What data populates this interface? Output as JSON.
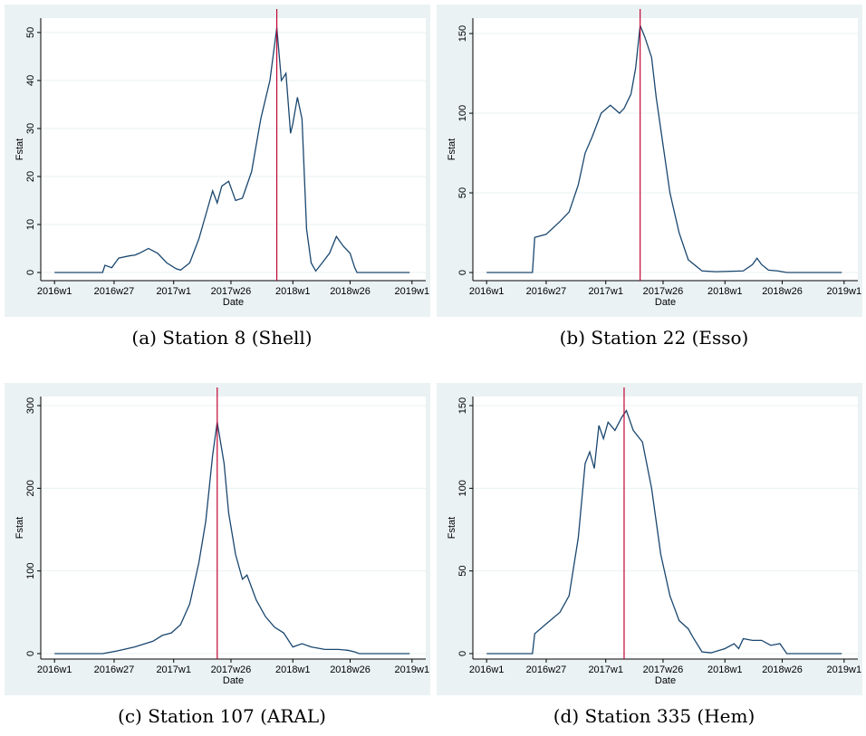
{
  "chart_data": [
    {
      "type": "line",
      "caption": "(a) Station 8 (Shell)",
      "xlabel": "Date",
      "ylabel": "Fstat",
      "color": "#1a476f",
      "xline": 3009,
      "xline_color": "#c10534",
      "grid": true,
      "xlim": [
        2906,
        3074
      ],
      "ylim": [
        -1.7,
        53
      ],
      "xticks": [
        {
          "value": 2912,
          "label": "2016w1"
        },
        {
          "value": 2938,
          "label": "2016w27"
        },
        {
          "value": 2964,
          "label": "2017w1"
        },
        {
          "value": 2989,
          "label": "2017w26"
        },
        {
          "value": 3016,
          "label": "2018w1"
        },
        {
          "value": 3041,
          "label": "2018w26"
        },
        {
          "value": 3068,
          "label": "2019w1"
        }
      ],
      "yticks": [
        0,
        10,
        20,
        30,
        40,
        50
      ],
      "x": [
        2912,
        2933,
        2934,
        2937,
        2940,
        2945,
        2947,
        2949,
        2953,
        2957,
        2961,
        2965,
        2967,
        2971,
        2975,
        2978,
        2981,
        2983,
        2985,
        2988,
        2991,
        2994,
        2998,
        3002,
        3006,
        3009,
        3011,
        3013,
        3015,
        3016,
        3018,
        3020,
        3022,
        3024,
        3026,
        3028,
        3032,
        3035,
        3038,
        3041,
        3043,
        3044,
        3067
      ],
      "values": [
        0,
        0,
        1.5,
        1,
        3,
        3.5,
        3.6,
        4,
        5,
        4,
        2,
        0.8,
        0.5,
        2,
        7,
        12,
        17,
        14.5,
        18,
        19,
        15,
        15.5,
        21,
        32,
        40,
        51,
        40,
        41.5,
        29,
        31,
        36.5,
        32,
        9,
        2,
        0.3,
        1.5,
        4,
        7.5,
        5.5,
        4,
        1,
        0,
        0
      ]
    },
    {
      "type": "line",
      "caption": "(b) Station 22 (Esso)",
      "xlabel": "Date",
      "ylabel": "Fstat",
      "color": "#1a476f",
      "xline": 2979,
      "xline_color": "#c10534",
      "grid": true,
      "xlim": [
        2906,
        3074
      ],
      "ylim": [
        -5.1,
        159.7
      ],
      "xticks": [
        {
          "value": 2912,
          "label": "2016w1"
        },
        {
          "value": 2938,
          "label": "2016w27"
        },
        {
          "value": 2964,
          "label": "2017w1"
        },
        {
          "value": 2989,
          "label": "2017w26"
        },
        {
          "value": 3016,
          "label": "2018w1"
        },
        {
          "value": 3041,
          "label": "2018w26"
        },
        {
          "value": 3068,
          "label": "2019w1"
        }
      ],
      "yticks": [
        0,
        50,
        100,
        150
      ],
      "x": [
        2912,
        2932,
        2933,
        2938,
        2944,
        2948,
        2952,
        2955,
        2958,
        2962,
        2966,
        2970,
        2972,
        2975,
        2977,
        2979,
        2981,
        2984,
        2986,
        2989,
        2992,
        2996,
        3000,
        3006,
        3012,
        3024,
        3028,
        3030,
        3032,
        3035,
        3039,
        3043,
        3067
      ],
      "values": [
        0,
        0,
        22,
        24,
        32,
        38,
        55,
        75,
        85,
        100,
        105,
        100,
        103,
        112,
        128,
        155,
        148,
        135,
        110,
        80,
        50,
        25,
        8,
        1,
        0.5,
        1,
        5,
        9,
        5,
        1.5,
        1,
        0,
        0
      ]
    },
    {
      "type": "line",
      "caption": "(c) Station 107 (ARAL)",
      "xlabel": "Date",
      "ylabel": "Fstat",
      "color": "#1a476f",
      "xline": 2983,
      "xline_color": "#c10534",
      "grid": true,
      "xlim": [
        2906,
        3074
      ],
      "ylim": [
        -6.6,
        311
      ],
      "xticks": [
        {
          "value": 2912,
          "label": "2016w1"
        },
        {
          "value": 2938,
          "label": "2016w27"
        },
        {
          "value": 2964,
          "label": "2017w1"
        },
        {
          "value": 2989,
          "label": "2017w26"
        },
        {
          "value": 3016,
          "label": "2018w1"
        },
        {
          "value": 3041,
          "label": "2018w26"
        },
        {
          "value": 3068,
          "label": "2019w1"
        }
      ],
      "yticks": [
        0,
        100,
        200,
        300
      ],
      "x": [
        2912,
        2933,
        2939,
        2947,
        2955,
        2959,
        2963,
        2967,
        2971,
        2975,
        2978,
        2981,
        2983,
        2986,
        2988,
        2991,
        2994,
        2996,
        3000,
        3004,
        3008,
        3012,
        3016,
        3020,
        3024,
        3030,
        3036,
        3040,
        3043,
        3045,
        3067
      ],
      "values": [
        0,
        0,
        3,
        8,
        15,
        22,
        25,
        35,
        60,
        110,
        160,
        240,
        280,
        230,
        170,
        120,
        90,
        95,
        65,
        45,
        32,
        25,
        8,
        12,
        8,
        5,
        5,
        4,
        2,
        0,
        0
      ]
    },
    {
      "type": "line",
      "caption": "(d) Station 335 (Hem)",
      "xlabel": "Date",
      "ylabel": "Fstat",
      "color": "#1a476f",
      "xline": 2972,
      "xline_color": "#c10534",
      "grid": true,
      "xlim": [
        2906,
        3074
      ],
      "ylim": [
        -3.3,
        155.5
      ],
      "xticks": [
        {
          "value": 2912,
          "label": "2016w1"
        },
        {
          "value": 2938,
          "label": "2016w27"
        },
        {
          "value": 2964,
          "label": "2017w1"
        },
        {
          "value": 2989,
          "label": "2017w26"
        },
        {
          "value": 3016,
          "label": "2018w1"
        },
        {
          "value": 3041,
          "label": "2018w26"
        },
        {
          "value": 3068,
          "label": "2019w1"
        }
      ],
      "yticks": [
        0,
        50,
        100,
        150
      ],
      "x": [
        2912,
        2932,
        2933,
        2938,
        2944,
        2948,
        2952,
        2955,
        2957,
        2959,
        2961,
        2963,
        2965,
        2968,
        2971,
        2973,
        2976,
        2980,
        2984,
        2988,
        2992,
        2996,
        3000,
        3002,
        3006,
        3010,
        3016,
        3020,
        3022,
        3024,
        3028,
        3032,
        3036,
        3040,
        3043,
        3067
      ],
      "values": [
        0,
        0,
        12,
        18,
        25,
        35,
        70,
        115,
        122,
        112,
        138,
        130,
        140,
        135,
        143,
        147,
        135,
        128,
        100,
        60,
        35,
        20,
        15,
        10,
        1,
        0.5,
        3,
        6,
        3,
        9,
        8,
        8,
        5,
        6,
        0,
        0
      ]
    }
  ]
}
